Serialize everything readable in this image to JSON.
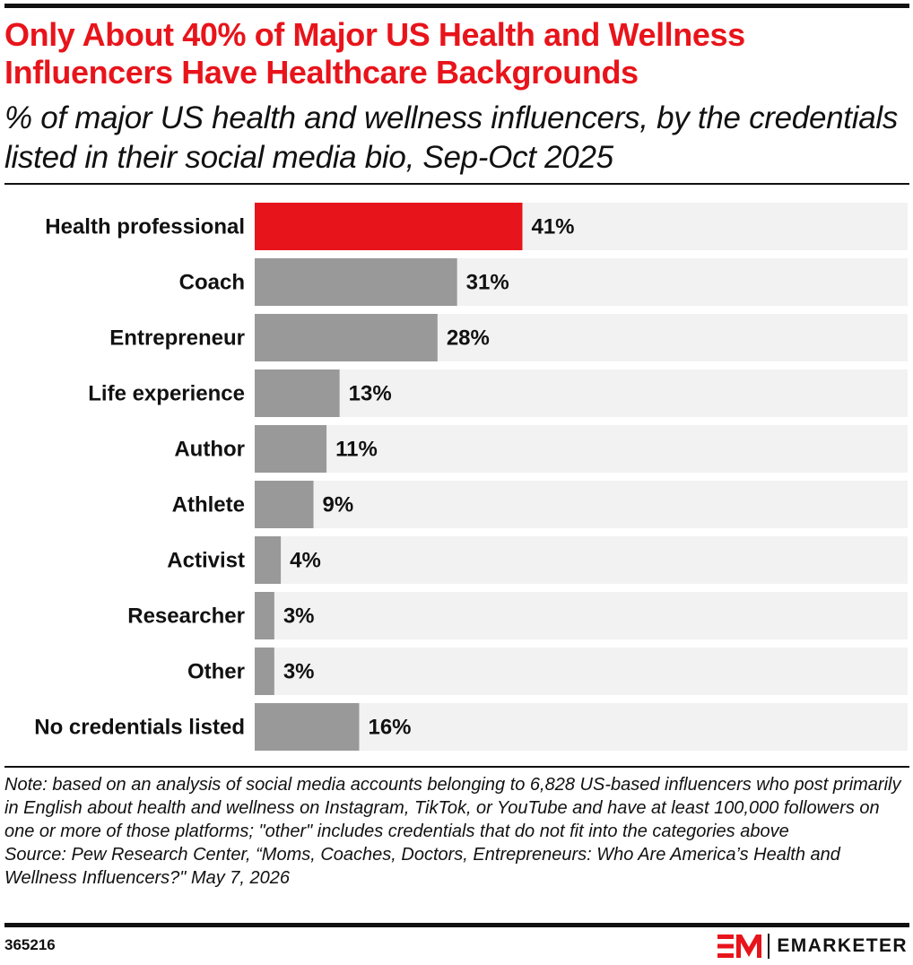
{
  "title": "Only About 40% of Major US Health and Wellness Influencers Have Healthcare Backgrounds",
  "subtitle": "% of major US health and wellness influencers, by the credentials listed in their social media bio, Sep-Oct 2025",
  "colors": {
    "highlight": "#e8141b",
    "bar": "#999999",
    "track": "#f2f2f2",
    "text": "#111111"
  },
  "chart_data": {
    "type": "bar",
    "orientation": "horizontal",
    "categories": [
      "Health professional",
      "Coach",
      "Entrepreneur",
      "Life experience",
      "Author",
      "Athlete",
      "Activist",
      "Researcher",
      "Other",
      "No credentials listed"
    ],
    "values": [
      41,
      31,
      28,
      13,
      11,
      9,
      4,
      3,
      3,
      16
    ],
    "value_labels": [
      "41%",
      "31%",
      "28%",
      "13%",
      "11%",
      "9%",
      "4%",
      "3%",
      "3%",
      "16%"
    ],
    "highlighted_category": "Health professional",
    "xlim": [
      0,
      100
    ],
    "grid": false,
    "legend": "none"
  },
  "note": "Note: based on an analysis of social media accounts belonging to 6,828 US-based influencers who post primarily in English about health and wellness on Instagram, TikTok, or YouTube and have at least 100,000 followers on one or more of those platforms; \"other\" includes credentials that do not fit into the categories above",
  "source": "Source: Pew Research Center, “Moms, Coaches, Doctors, Entrepreneurs: Who Are America’s Health and Wellness Influencers?\" May 7, 2026",
  "chart_id": "365216",
  "brand": {
    "name": "EMARKETER",
    "mark": "EM",
    "icon": "emarketer-logo-icon"
  }
}
